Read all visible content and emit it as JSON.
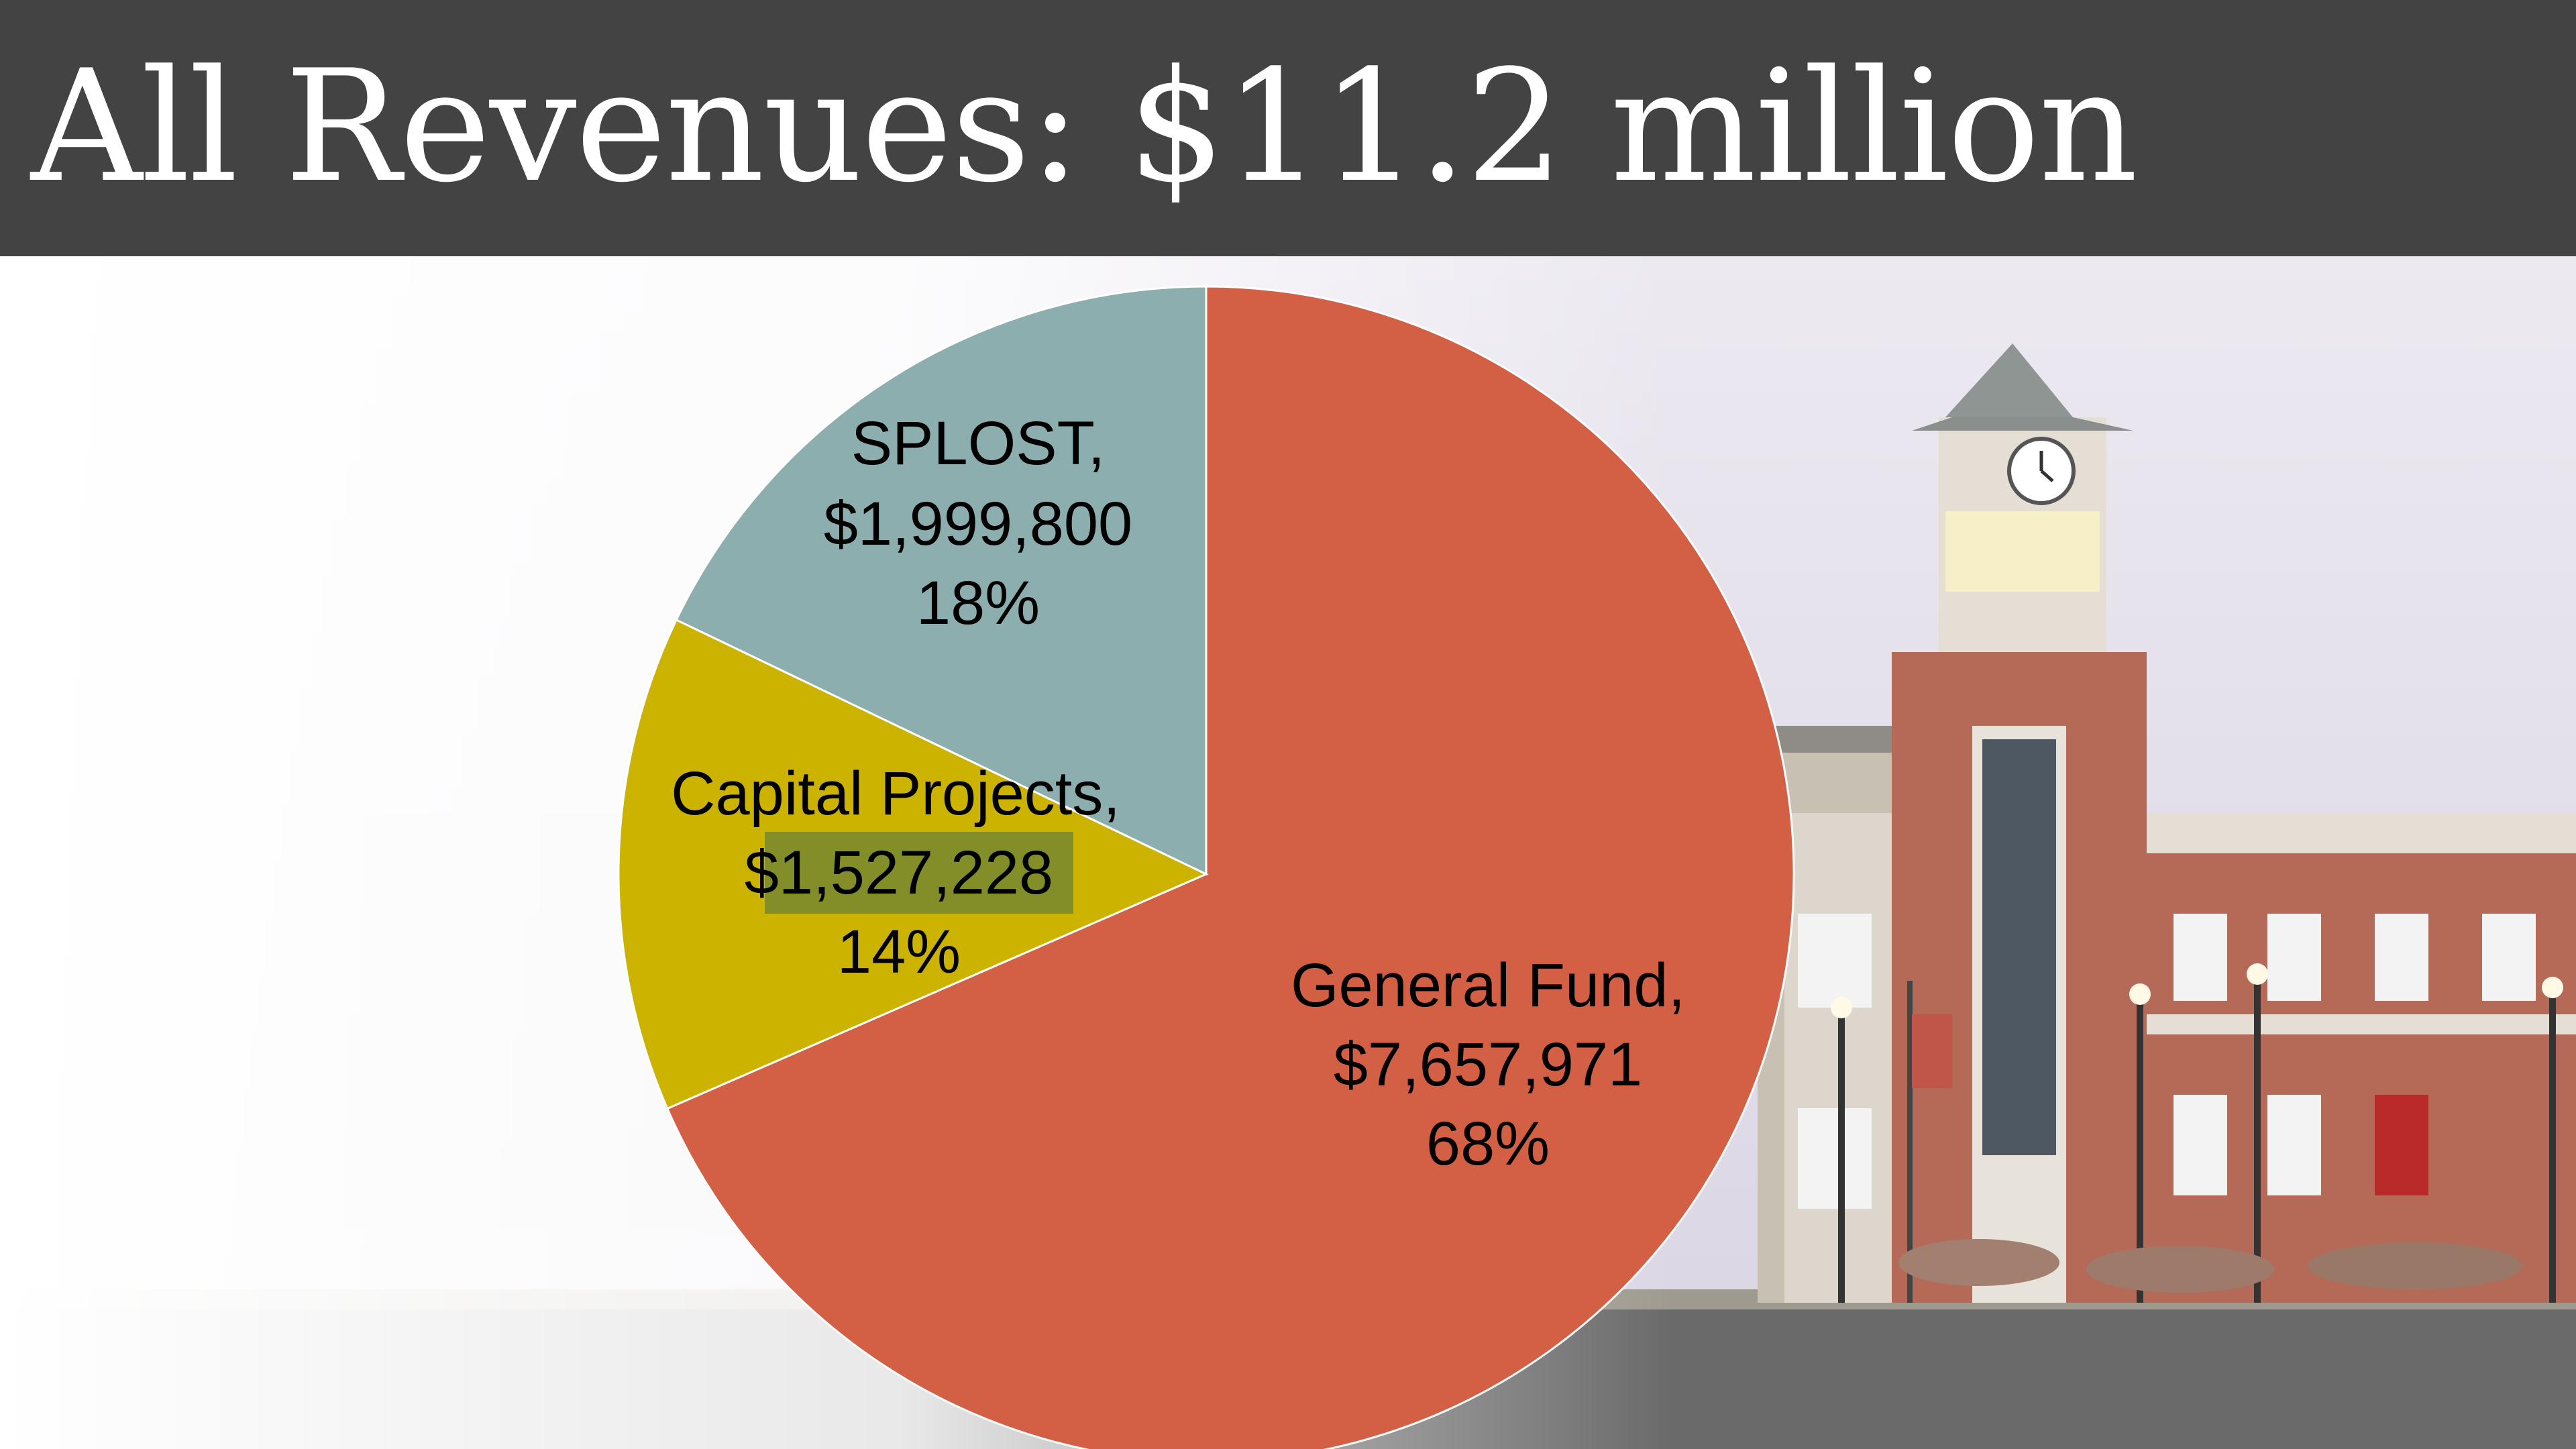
{
  "header": {
    "title": "All Revenues: $11.2 million"
  },
  "chart_data": {
    "type": "pie",
    "start_angle_deg": 0,
    "direction": "clockwise",
    "slices": [
      {
        "name": "General Fund",
        "value": 7657971,
        "value_label": "$7,657,971",
        "percent_label": "68%",
        "color": "#d35f45"
      },
      {
        "name": "Capital Projects",
        "value": 1527228,
        "value_label": "$1,527,228",
        "percent_label": "14%",
        "color": "#cbb300"
      },
      {
        "name": "SPLOST",
        "value": 1999800,
        "value_label": "$1,999,800",
        "percent_label": "18%",
        "color": "#8daeae"
      }
    ]
  },
  "colors": {
    "title_bar": "#434343",
    "highlight": "#7b8a2e"
  },
  "background": {
    "image": "town-hall-photo"
  }
}
